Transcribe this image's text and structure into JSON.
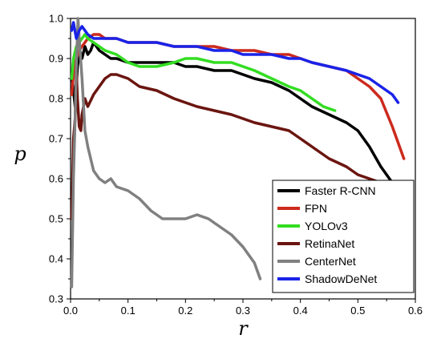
{
  "chart_data": {
    "type": "line",
    "xlabel": "r",
    "ylabel": "p",
    "xlim": [
      0,
      0.6
    ],
    "ylim": [
      0.3,
      1.0
    ],
    "xticks": [
      "0.0",
      "0.1",
      "0.2",
      "0.3",
      "0.4",
      "0.5",
      "0.6"
    ],
    "yticks": [
      "0.3",
      "0.4",
      "0.5",
      "0.6",
      "0.7",
      "0.8",
      "0.9",
      "1.0"
    ],
    "grid": false,
    "legend_position": "bottom-right",
    "series": [
      {
        "name": "Faster R-CNN",
        "color": "#000000",
        "x": [
          0.002,
          0.005,
          0.008,
          0.012,
          0.016,
          0.02,
          0.025,
          0.03,
          0.035,
          0.04,
          0.045,
          0.05,
          0.06,
          0.07,
          0.08,
          0.1,
          0.12,
          0.15,
          0.18,
          0.2,
          0.22,
          0.25,
          0.28,
          0.3,
          0.32,
          0.35,
          0.38,
          0.4,
          0.42,
          0.45,
          0.48,
          0.5,
          0.52,
          0.54,
          0.56
        ],
        "y": [
          0.86,
          0.82,
          0.78,
          0.88,
          0.92,
          0.9,
          0.93,
          0.91,
          0.92,
          0.94,
          0.93,
          0.92,
          0.91,
          0.9,
          0.9,
          0.89,
          0.89,
          0.89,
          0.89,
          0.88,
          0.88,
          0.87,
          0.87,
          0.86,
          0.85,
          0.84,
          0.82,
          0.8,
          0.78,
          0.76,
          0.74,
          0.72,
          0.68,
          0.63,
          0.59
        ]
      },
      {
        "name": "FPN",
        "color": "#cc2a1d",
        "x": [
          0.002,
          0.005,
          0.01,
          0.015,
          0.02,
          0.025,
          0.03,
          0.04,
          0.05,
          0.06,
          0.08,
          0.1,
          0.12,
          0.15,
          0.18,
          0.2,
          0.22,
          0.25,
          0.28,
          0.3,
          0.32,
          0.35,
          0.38,
          0.4,
          0.42,
          0.45,
          0.48,
          0.5,
          0.52,
          0.54,
          0.56,
          0.58
        ],
        "y": [
          0.81,
          0.86,
          0.9,
          0.92,
          0.93,
          0.94,
          0.95,
          0.96,
          0.96,
          0.95,
          0.95,
          0.94,
          0.94,
          0.94,
          0.93,
          0.93,
          0.93,
          0.93,
          0.92,
          0.92,
          0.92,
          0.91,
          0.91,
          0.9,
          0.89,
          0.88,
          0.87,
          0.85,
          0.83,
          0.8,
          0.73,
          0.65
        ]
      },
      {
        "name": "YOLOv3",
        "color": "#33dd22",
        "x": [
          0.002,
          0.005,
          0.01,
          0.015,
          0.02,
          0.025,
          0.03,
          0.04,
          0.05,
          0.06,
          0.08,
          0.1,
          0.12,
          0.15,
          0.18,
          0.2,
          0.22,
          0.25,
          0.28,
          0.3,
          0.32,
          0.35,
          0.38,
          0.4,
          0.42,
          0.44,
          0.46
        ],
        "y": [
          0.85,
          0.9,
          0.93,
          0.94,
          0.95,
          0.96,
          0.95,
          0.94,
          0.93,
          0.92,
          0.91,
          0.89,
          0.88,
          0.88,
          0.89,
          0.9,
          0.9,
          0.89,
          0.89,
          0.88,
          0.87,
          0.85,
          0.83,
          0.82,
          0.8,
          0.78,
          0.77
        ]
      },
      {
        "name": "RetinaNet",
        "color": "#6b1510",
        "x": [
          0.002,
          0.005,
          0.008,
          0.01,
          0.012,
          0.015,
          0.018,
          0.02,
          0.025,
          0.03,
          0.04,
          0.05,
          0.06,
          0.07,
          0.08,
          0.1,
          0.12,
          0.15,
          0.18,
          0.2,
          0.22,
          0.25,
          0.28,
          0.3,
          0.32,
          0.35,
          0.38,
          0.4,
          0.42,
          0.45,
          0.48,
          0.5,
          0.52,
          0.54,
          0.56
        ],
        "y": [
          0.5,
          0.7,
          0.75,
          0.87,
          0.8,
          0.73,
          0.72,
          0.76,
          0.8,
          0.78,
          0.81,
          0.83,
          0.85,
          0.86,
          0.86,
          0.85,
          0.83,
          0.82,
          0.8,
          0.79,
          0.78,
          0.77,
          0.76,
          0.75,
          0.74,
          0.73,
          0.72,
          0.7,
          0.68,
          0.65,
          0.63,
          0.61,
          0.6,
          0.59,
          0.58
        ]
      },
      {
        "name": "CenterNet",
        "color": "#808080",
        "x": [
          0.002,
          0.005,
          0.008,
          0.01,
          0.013,
          0.015,
          0.02,
          0.025,
          0.03,
          0.035,
          0.04,
          0.05,
          0.06,
          0.07,
          0.08,
          0.1,
          0.12,
          0.14,
          0.16,
          0.18,
          0.2,
          0.22,
          0.24,
          0.26,
          0.28,
          0.3,
          0.32,
          0.33
        ],
        "y": [
          0.33,
          0.6,
          0.75,
          0.88,
          1.0,
          0.95,
          0.85,
          0.72,
          0.68,
          0.65,
          0.62,
          0.6,
          0.59,
          0.6,
          0.58,
          0.57,
          0.55,
          0.52,
          0.5,
          0.5,
          0.5,
          0.51,
          0.5,
          0.48,
          0.46,
          0.43,
          0.39,
          0.35
        ]
      },
      {
        "name": "ShadowDeNet",
        "color": "#1a22e8",
        "x": [
          0.002,
          0.005,
          0.01,
          0.015,
          0.02,
          0.025,
          0.03,
          0.04,
          0.05,
          0.06,
          0.08,
          0.1,
          0.12,
          0.15,
          0.18,
          0.2,
          0.22,
          0.25,
          0.28,
          0.3,
          0.32,
          0.35,
          0.38,
          0.4,
          0.42,
          0.45,
          0.48,
          0.5,
          0.52,
          0.54,
          0.56,
          0.57
        ],
        "y": [
          0.97,
          0.99,
          0.95,
          0.97,
          0.98,
          0.97,
          0.96,
          0.95,
          0.95,
          0.95,
          0.95,
          0.94,
          0.94,
          0.94,
          0.93,
          0.93,
          0.93,
          0.92,
          0.92,
          0.91,
          0.91,
          0.91,
          0.9,
          0.9,
          0.89,
          0.88,
          0.87,
          0.86,
          0.85,
          0.83,
          0.81,
          0.79
        ]
      }
    ]
  }
}
